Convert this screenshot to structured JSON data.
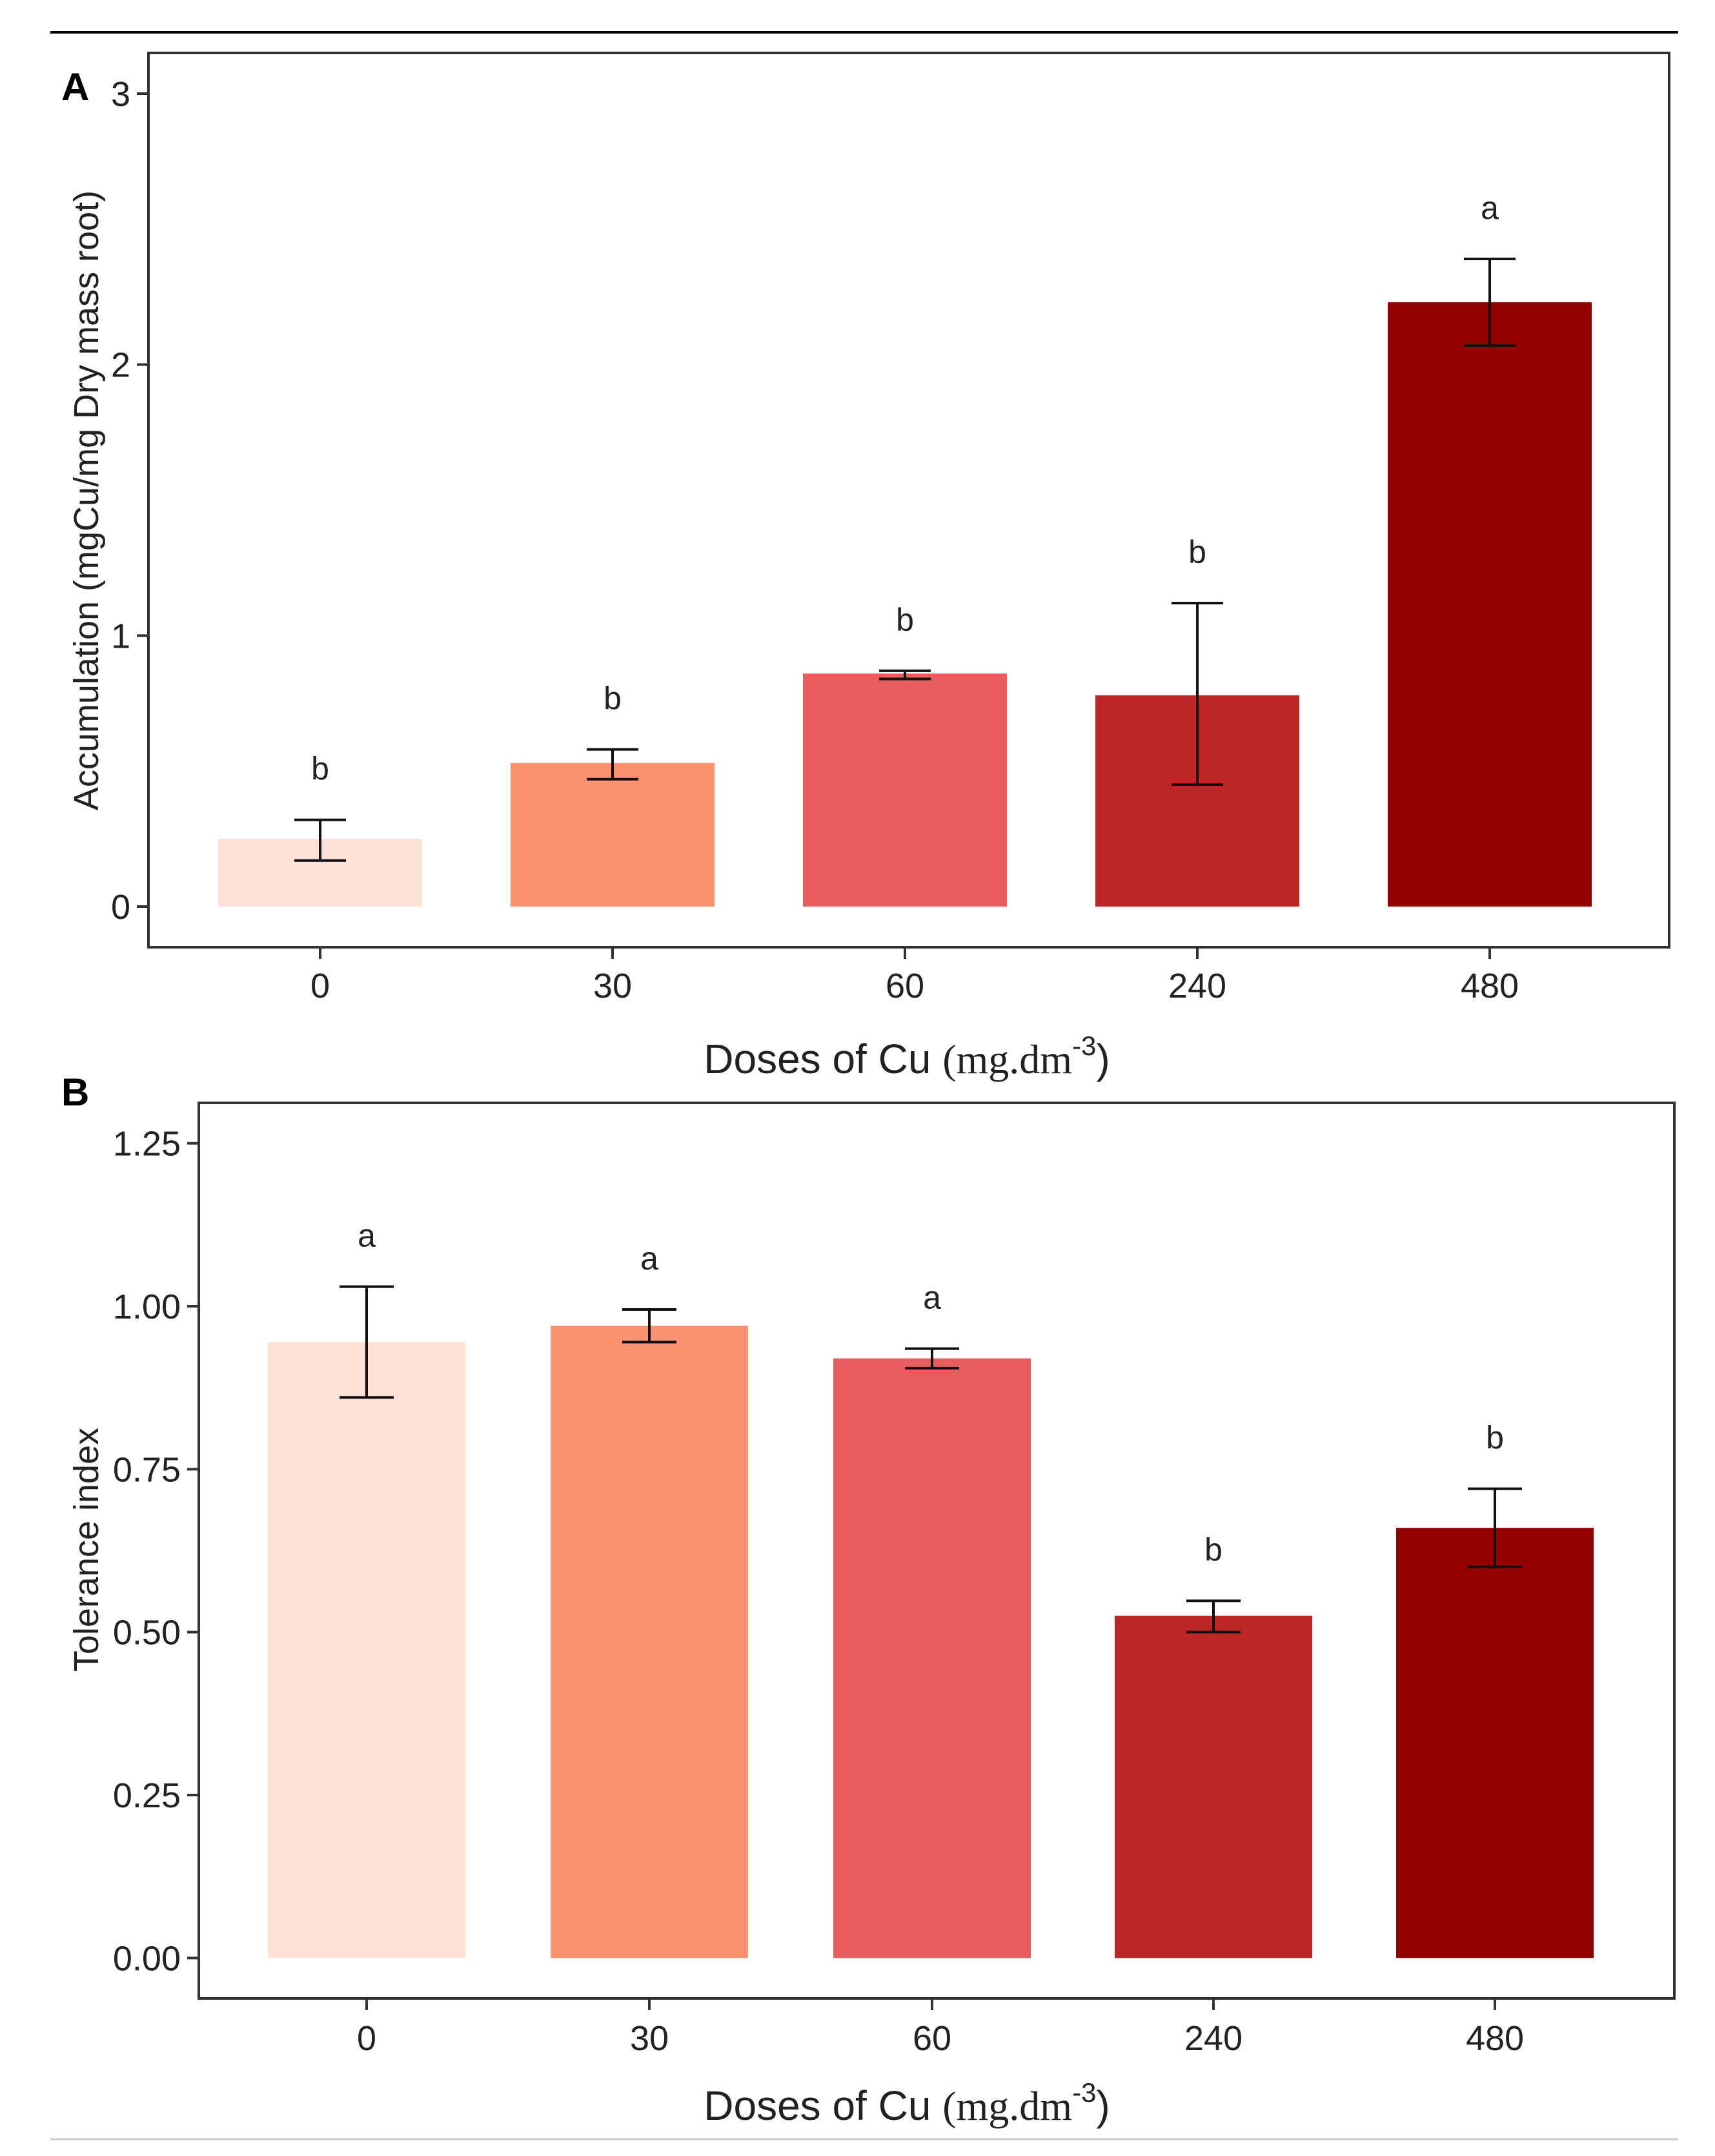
{
  "chart_data": [
    {
      "type": "bar",
      "panel_label": "A",
      "categories": [
        "0",
        "30",
        "60",
        "240",
        "480"
      ],
      "values": [
        0.25,
        0.53,
        0.86,
        0.78,
        2.23
      ],
      "error_low": [
        0.17,
        0.47,
        0.84,
        0.45,
        2.07
      ],
      "error_high": [
        0.32,
        0.58,
        0.87,
        1.12,
        2.39
      ],
      "significance": [
        "b",
        "b",
        "b",
        "b",
        "a"
      ],
      "colors": [
        "#FDE0D6",
        "#FC9272",
        "#E85D5D",
        "#BF2626",
        "#930000"
      ],
      "ylabel": "Accumulation (mgCu/mg Dry mass root)",
      "xlabel_main": "Doses of Cu ",
      "xlabel_unit": "(mg.dm",
      "xlabel_sup": "-3",
      "xlabel_close": ")",
      "yticks": [
        "0",
        "1",
        "2",
        "3"
      ],
      "ylim": [
        -0.15,
        3.15
      ],
      "grid": false,
      "legend": "none"
    },
    {
      "type": "bar",
      "panel_label": "B",
      "categories": [
        "0",
        "30",
        "60",
        "240",
        "480"
      ],
      "values": [
        0.945,
        0.97,
        0.92,
        0.525,
        0.66
      ],
      "error_low": [
        0.86,
        0.945,
        0.905,
        0.5,
        0.6
      ],
      "error_high": [
        1.03,
        0.995,
        0.935,
        0.548,
        0.72
      ],
      "significance": [
        "a",
        "a",
        "a",
        "b",
        "b"
      ],
      "colors": [
        "#FDE0D6",
        "#FC9272",
        "#E85D5D",
        "#BF2626",
        "#930000"
      ],
      "ylabel": "Tolerance index",
      "xlabel_main": "Doses of Cu ",
      "xlabel_unit": "(mg.dm",
      "xlabel_sup": "-3",
      "xlabel_close": ")",
      "yticks": [
        "0.00",
        "0.25",
        "0.50",
        "0.75",
        "1.00",
        "1.25"
      ],
      "ylim": [
        -0.062,
        1.312
      ],
      "grid": false,
      "legend": "none"
    }
  ]
}
